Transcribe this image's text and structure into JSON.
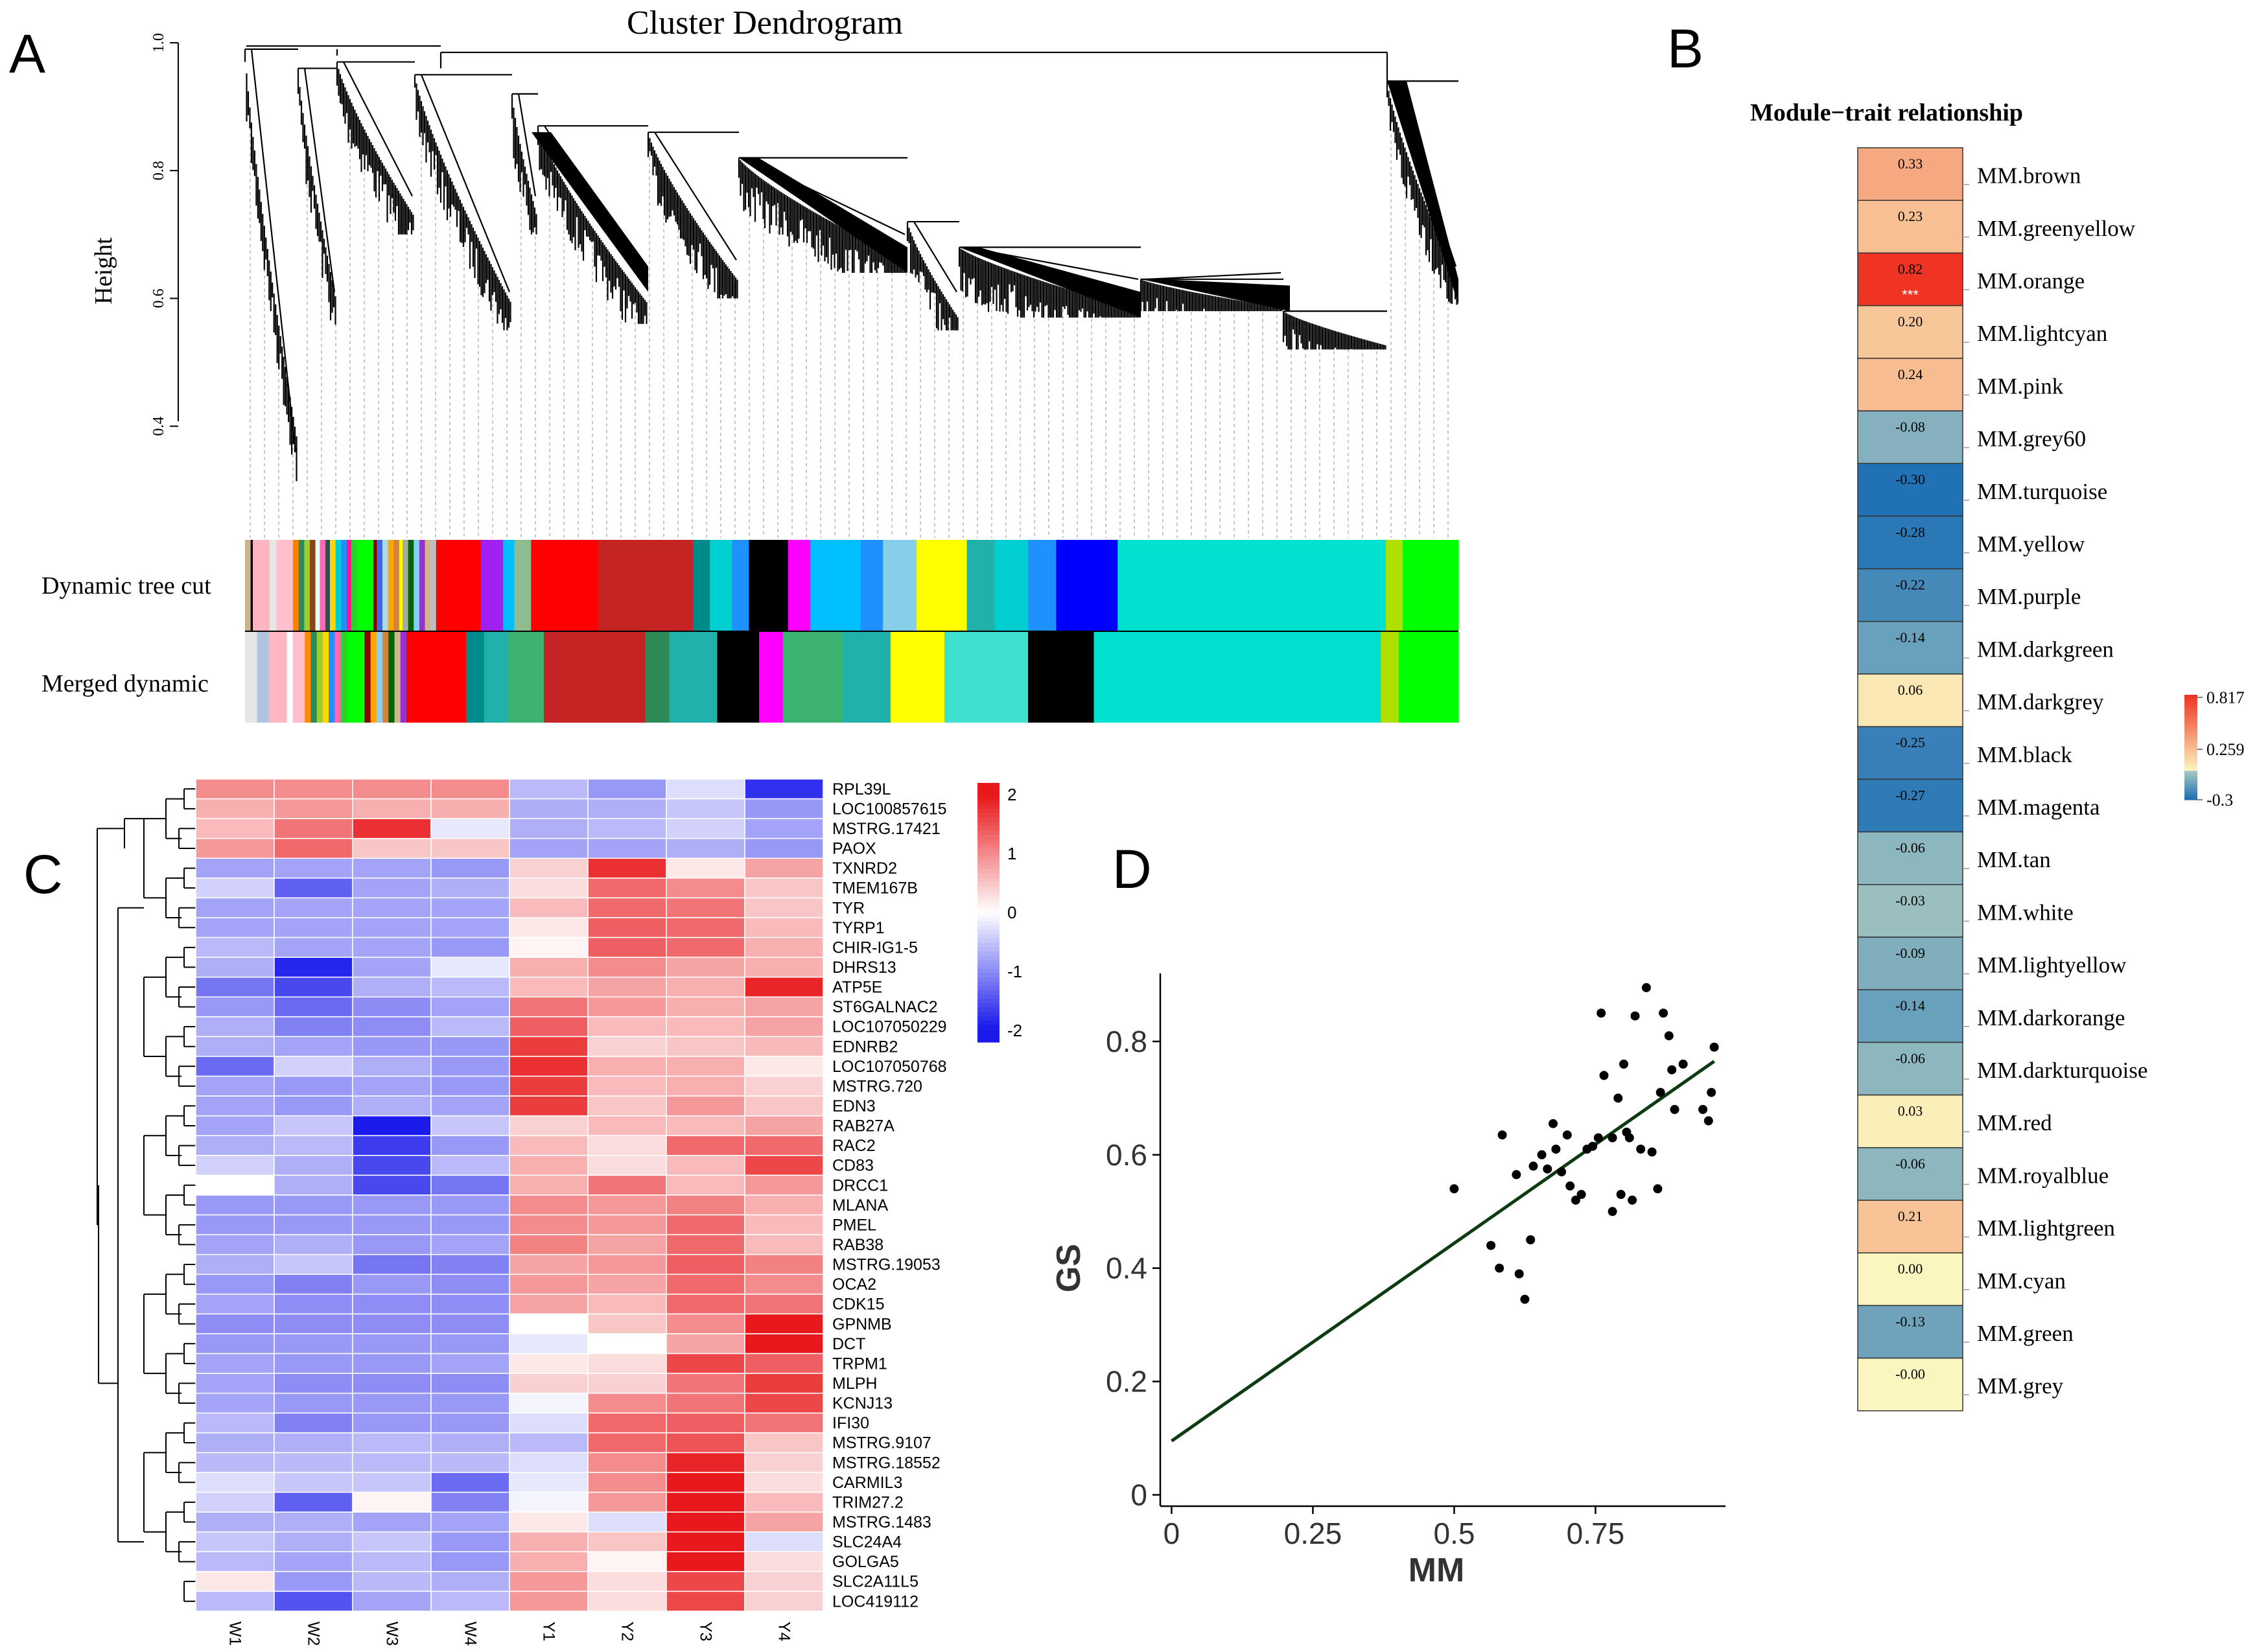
{
  "panels": {
    "a": {
      "letter": "A",
      "title": "Cluster Dendrogram",
      "ylabel": "Height",
      "yticks": [
        "1.0",
        "0.8",
        "0.6",
        "0.4"
      ],
      "row_labels": [
        "Dynamic tree cut",
        "Merged dynamic"
      ]
    },
    "b": {
      "letter": "B",
      "title": "Module−trait relationship",
      "scale_labels": [
        "0.817",
        "0.259",
        "-0.3"
      ]
    },
    "c": {
      "letter": "C",
      "legend_ticks": [
        "2",
        "1",
        "0",
        "-1",
        "-2"
      ]
    },
    "d": {
      "letter": "D"
    }
  },
  "colors": {
    "dendrogram": "#000000",
    "heat_high": "#e8191c",
    "heat_mid": "#ffffff",
    "heat_low": "#1a1aeb",
    "trait_high": "#ee3524",
    "trait_mid": "#fbf6bf",
    "trait_low": "#2172b5",
    "fit_line": "#0d3b11"
  },
  "chart_data": [
    {
      "id": "module-colors",
      "type": "table",
      "title": "Cluster Dendrogram",
      "rows": [
        "Dynamic tree cut",
        "Merged dynamic"
      ],
      "dynamic": [
        [
          "#cdb38b",
          1
        ],
        [
          "#000000",
          0.4
        ],
        [
          "#ffb6c1",
          3
        ],
        [
          "#e6e6e6",
          1.2
        ],
        [
          "#ffc0cb",
          3
        ],
        [
          "#ff7f00",
          1
        ],
        [
          "#2e8b57",
          1
        ],
        [
          "#9acd32",
          1
        ],
        [
          "#8b4513",
          1
        ],
        [
          "#e0ffff",
          0.8
        ],
        [
          "#ff69b4",
          1
        ],
        [
          "#2f4f4f",
          0.8
        ],
        [
          "#ffd700",
          1
        ],
        [
          "#00ced1",
          1
        ],
        [
          "#1e90ff",
          1
        ],
        [
          "#ff1493",
          0.8
        ],
        [
          "#32cd32",
          1
        ],
        [
          "#00ff00",
          3
        ],
        [
          "#8b0000",
          0.6
        ],
        [
          "#4169e1",
          1
        ],
        [
          "#add8e6",
          1
        ],
        [
          "#ffa500",
          1
        ],
        [
          "#cd853f",
          1
        ],
        [
          "#ffff00",
          0.6
        ],
        [
          "#a9a9a9",
          1
        ],
        [
          "#006400",
          1
        ],
        [
          "#87cefa",
          1
        ],
        [
          "#9932cc",
          1
        ],
        [
          "#d2b48c",
          1
        ],
        [
          "#bebebe",
          1
        ],
        [
          "#ff0000",
          8
        ],
        [
          "#a020f0",
          4
        ],
        [
          "#00bfff",
          2
        ],
        [
          "#8fbc8f",
          3
        ],
        [
          "#ff0000",
          12
        ],
        [
          "#c52424",
          17
        ],
        [
          "#008b8b",
          3
        ],
        [
          "#00ced1",
          4
        ],
        [
          "#1e90ff",
          3
        ],
        [
          "#000000",
          7
        ],
        [
          "#ff00ff",
          4
        ],
        [
          "#00bfff",
          9
        ],
        [
          "#1e90ff",
          4
        ],
        [
          "#87ceeb",
          6
        ],
        [
          "#ffff00",
          9
        ],
        [
          "#20b2aa",
          5
        ],
        [
          "#00ced1",
          6
        ],
        [
          "#1e90ff",
          5
        ],
        [
          "#0000ff",
          11
        ],
        [
          "#00e0cf",
          48
        ],
        [
          "#b0e000",
          3
        ],
        [
          "#00ff00",
          10
        ]
      ],
      "merged": [
        [
          "#e6e6e6",
          2
        ],
        [
          "#b0c4de",
          2
        ],
        [
          "#ffb6c1",
          3
        ],
        [
          "#ffffff",
          1
        ],
        [
          "#ffc0cb",
          2
        ],
        [
          "#ff8c00",
          1
        ],
        [
          "#2e8b57",
          1
        ],
        [
          "#9acd32",
          1
        ],
        [
          "#ffd700",
          1
        ],
        [
          "#1e90ff",
          1
        ],
        [
          "#ff69b4",
          1
        ],
        [
          "#32cd32",
          1
        ],
        [
          "#00ff00",
          3
        ],
        [
          "#8b0000",
          1
        ],
        [
          "#ffa500",
          1
        ],
        [
          "#87cefa",
          1
        ],
        [
          "#cd853f",
          1
        ],
        [
          "#006400",
          1
        ],
        [
          "#d2b48c",
          1
        ],
        [
          "#9932cc",
          1
        ],
        [
          "#ff0000",
          10
        ],
        [
          "#008b8b",
          3
        ],
        [
          "#20b2aa",
          4
        ],
        [
          "#3cb371",
          6
        ],
        [
          "#c52424",
          17
        ],
        [
          "#2e8b57",
          4
        ],
        [
          "#20b2aa",
          8
        ],
        [
          "#000000",
          7
        ],
        [
          "#ff00ff",
          4
        ],
        [
          "#3cb371",
          10
        ],
        [
          "#20b2aa",
          8
        ],
        [
          "#ffff00",
          9
        ],
        [
          "#40e0d0",
          14
        ],
        [
          "#000000",
          11
        ],
        [
          "#00e0cf",
          48
        ],
        [
          "#b0e000",
          3
        ],
        [
          "#00ff00",
          10
        ]
      ]
    },
    {
      "id": "module-trait",
      "type": "heatmap",
      "title": "Module−trait relationship",
      "rows": [
        "MM.brown",
        "MM.greenyellow",
        "MM.orange",
        "MM.lightcyan",
        "MM.pink",
        "MM.grey60",
        "MM.turquoise",
        "MM.yellow",
        "MM.purple",
        "MM.darkgreen",
        "MM.darkgrey",
        "MM.black",
        "MM.magenta",
        "MM.tan",
        "MM.white",
        "MM.lightyellow",
        "MM.darkorange",
        "MM.darkturquoise",
        "MM.red",
        "MM.royalblue",
        "MM.lightgreen",
        "MM.cyan",
        "MM.green",
        "MM.grey"
      ],
      "values": [
        0.33,
        0.23,
        0.82,
        0.2,
        0.24,
        -0.08,
        -0.3,
        -0.28,
        -0.22,
        -0.14,
        0.06,
        -0.25,
        -0.27,
        -0.06,
        -0.03,
        -0.09,
        -0.14,
        -0.06,
        0.03,
        -0.06,
        0.21,
        0.0,
        -0.13,
        -0.0
      ],
      "labels": [
        "0.33",
        "0.23",
        "0.82",
        "0.20",
        "0.24",
        "-0.08",
        "-0.30",
        "-0.28",
        "-0.22",
        "-0.14",
        "0.06",
        "-0.25",
        "-0.27",
        "-0.06",
        "-0.03",
        "-0.09",
        "-0.14",
        "-0.06",
        "0.03",
        "-0.06",
        "0.21",
        "0.00",
        "-0.13",
        "-0.00"
      ],
      "stars": [
        "",
        "",
        "***",
        "",
        "",
        "",
        "",
        "",
        "",
        "",
        "",
        "",
        "",
        "",
        "",
        "",
        "",
        "",
        "",
        "",
        "",
        "",
        "",
        ""
      ],
      "range": [
        -0.3,
        0.817
      ]
    },
    {
      "id": "expression-heatmap",
      "type": "heatmap",
      "columns": [
        "W1",
        "W2",
        "W3",
        "W4",
        "Y1",
        "Y2",
        "Y3",
        "Y4"
      ],
      "rows": [
        "RPL39L",
        "LOC100857615",
        "MSTRG.17421",
        "PAOX",
        "TXNRD2",
        "TMEM167B",
        "TYR",
        "TYRP1",
        "CHIR-IG1-5",
        "DHRS13",
        "ATP5E",
        "ST6GALNAC2",
        "LOC107050229",
        "EDNRB2",
        "LOC107050768",
        "MSTRG.720",
        "EDN3",
        "RAB27A",
        "RAC2",
        "CD83",
        "DRCC1",
        "MLANA",
        "PMEL",
        "RAB38",
        "MSTRG.19053",
        "OCA2",
        "CDK15",
        "GPNMB",
        "DCT",
        "TRPM1",
        "MLPH",
        "KCNJ13",
        "IFI30",
        "MSTRG.9107",
        "MSTRG.18552",
        "CARMIL3",
        "TRIM27.2",
        "MSTRG.1483",
        "SLC24A4",
        "GOLGA5",
        "SLC2A11L5",
        "LOC419112"
      ],
      "values": [
        [
          1.0,
          1.0,
          1.0,
          1.0,
          -0.6,
          -0.9,
          -0.3,
          -1.8
        ],
        [
          0.7,
          0.9,
          0.7,
          0.7,
          -0.7,
          -0.7,
          -0.5,
          -0.9
        ],
        [
          0.6,
          1.2,
          1.8,
          -0.2,
          -0.7,
          -0.6,
          -0.4,
          -0.8
        ],
        [
          0.9,
          1.3,
          0.5,
          0.5,
          -0.8,
          -0.8,
          -0.7,
          -0.9
        ],
        [
          -0.8,
          -0.8,
          -0.8,
          -0.9,
          0.4,
          1.8,
          0.2,
          0.8
        ],
        [
          -0.4,
          -1.4,
          -0.8,
          -0.7,
          0.3,
          1.3,
          1.0,
          0.5
        ],
        [
          -0.8,
          -0.8,
          -0.8,
          -0.8,
          0.6,
          1.3,
          1.2,
          0.5
        ],
        [
          -0.8,
          -0.8,
          -0.8,
          -0.8,
          0.2,
          1.4,
          1.3,
          0.6
        ],
        [
          -0.6,
          -0.8,
          -0.8,
          -0.9,
          0.1,
          1.4,
          1.3,
          0.7
        ],
        [
          -0.7,
          -1.9,
          -0.8,
          -0.2,
          0.7,
          1.0,
          0.8,
          0.7
        ],
        [
          -1.2,
          -1.6,
          -0.7,
          -0.6,
          0.6,
          0.8,
          0.7,
          1.9
        ],
        [
          -0.9,
          -1.3,
          -1.0,
          -0.8,
          1.2,
          0.9,
          0.7,
          0.8
        ],
        [
          -0.7,
          -1.1,
          -1.0,
          -0.6,
          1.4,
          0.6,
          0.6,
          0.8
        ],
        [
          -0.7,
          -0.8,
          -0.9,
          -0.9,
          1.7,
          0.4,
          0.5,
          0.6
        ],
        [
          -1.3,
          -0.4,
          -0.7,
          -0.9,
          1.8,
          0.7,
          0.7,
          0.2
        ],
        [
          -0.8,
          -0.9,
          -0.8,
          -0.9,
          1.7,
          0.6,
          0.7,
          0.4
        ],
        [
          -0.8,
          -0.9,
          -0.7,
          -0.8,
          1.7,
          0.5,
          0.9,
          0.5
        ],
        [
          -0.8,
          -0.5,
          -2.0,
          -0.5,
          0.4,
          0.6,
          0.6,
          0.8
        ],
        [
          -0.7,
          -0.6,
          -1.7,
          -0.9,
          0.6,
          0.3,
          1.3,
          1.3
        ],
        [
          -0.4,
          -0.7,
          -1.6,
          -0.6,
          0.7,
          0.3,
          0.6,
          1.6
        ],
        [
          0.0,
          -0.7,
          -1.6,
          -1.2,
          0.7,
          1.2,
          0.6,
          0.9
        ],
        [
          -0.9,
          -0.9,
          -0.9,
          -0.9,
          1.0,
          0.9,
          1.1,
          0.7
        ],
        [
          -0.9,
          -0.9,
          -0.9,
          -0.9,
          1.0,
          0.9,
          1.3,
          0.6
        ],
        [
          -0.8,
          -0.7,
          -0.9,
          -0.8,
          1.1,
          0.8,
          1.3,
          0.6
        ],
        [
          -0.7,
          -0.5,
          -1.2,
          -1.1,
          0.8,
          0.9,
          1.4,
          1.1
        ],
        [
          -0.9,
          -1.1,
          -0.9,
          -1.0,
          0.9,
          0.8,
          1.3,
          1.0
        ],
        [
          -0.8,
          -1.0,
          -1.0,
          -1.0,
          0.8,
          0.6,
          1.3,
          1.2
        ],
        [
          -1.0,
          -1.0,
          -1.0,
          -1.0,
          0.0,
          0.5,
          1.0,
          2.2
        ],
        [
          -0.9,
          -0.9,
          -0.9,
          -0.9,
          -0.2,
          0.0,
          0.8,
          2.2
        ],
        [
          -0.8,
          -0.9,
          -0.9,
          -0.8,
          0.2,
          0.3,
          1.6,
          1.4
        ],
        [
          -0.8,
          -1.0,
          -1.0,
          -1.0,
          0.4,
          0.4,
          1.2,
          1.7
        ],
        [
          -0.8,
          -0.9,
          -0.9,
          -0.9,
          -0.1,
          1.0,
          1.2,
          1.6
        ],
        [
          -0.6,
          -1.1,
          -0.9,
          -0.9,
          -0.3,
          1.3,
          1.4,
          1.2
        ],
        [
          -0.7,
          -0.7,
          -0.6,
          -0.7,
          -0.6,
          1.3,
          1.5,
          0.5
        ],
        [
          -0.6,
          -0.6,
          -0.6,
          -0.6,
          -0.3,
          1.0,
          1.9,
          0.4
        ],
        [
          -0.3,
          -0.5,
          -0.5,
          -1.3,
          -0.2,
          1.0,
          2.0,
          0.3
        ],
        [
          -0.4,
          -1.4,
          0.1,
          -1.1,
          -0.1,
          0.9,
          2.0,
          0.6
        ],
        [
          -0.7,
          -0.7,
          -0.8,
          -0.8,
          0.2,
          -0.3,
          2.1,
          0.8
        ],
        [
          -0.5,
          -0.7,
          -0.5,
          -0.9,
          0.7,
          0.5,
          2.0,
          -0.3
        ],
        [
          -0.6,
          -0.8,
          -0.6,
          -0.9,
          0.7,
          0.1,
          2.0,
          0.3
        ],
        [
          0.2,
          -0.9,
          -0.6,
          -0.7,
          0.9,
          0.3,
          1.6,
          0.4
        ],
        [
          -0.6,
          -1.5,
          -0.8,
          -0.6,
          0.9,
          0.3,
          1.6,
          0.4
        ]
      ],
      "range": [
        -2,
        2.2
      ]
    },
    {
      "id": "gs-vs-mm",
      "type": "scatter",
      "xlabel": "MM",
      "ylabel": "GS",
      "xlim": [
        -0.02,
        0.98
      ],
      "ylim": [
        -0.02,
        0.92
      ],
      "xticks": [
        0,
        0.25,
        0.5,
        0.75
      ],
      "xtick_labels": [
        "0",
        "0.25",
        "0.5",
        "0.75"
      ],
      "yticks": [
        0,
        0.2,
        0.4,
        0.6,
        0.8
      ],
      "ytick_labels": [
        "0",
        "0.2",
        "0.4",
        "0.6",
        "0.8"
      ],
      "fit": {
        "x": [
          0,
          0.96
        ],
        "y": [
          0.095,
          0.765
        ]
      },
      "points": [
        [
          0.5,
          0.54
        ],
        [
          0.565,
          0.44
        ],
        [
          0.58,
          0.4
        ],
        [
          0.585,
          0.635
        ],
        [
          0.61,
          0.565
        ],
        [
          0.615,
          0.39
        ],
        [
          0.625,
          0.345
        ],
        [
          0.635,
          0.45
        ],
        [
          0.64,
          0.58
        ],
        [
          0.655,
          0.6
        ],
        [
          0.665,
          0.575
        ],
        [
          0.675,
          0.655
        ],
        [
          0.68,
          0.61
        ],
        [
          0.69,
          0.57
        ],
        [
          0.7,
          0.635
        ],
        [
          0.705,
          0.545
        ],
        [
          0.715,
          0.52
        ],
        [
          0.725,
          0.53
        ],
        [
          0.735,
          0.61
        ],
        [
          0.745,
          0.615
        ],
        [
          0.755,
          0.63
        ],
        [
          0.76,
          0.85
        ],
        [
          0.765,
          0.74
        ],
        [
          0.78,
          0.5
        ],
        [
          0.78,
          0.63
        ],
        [
          0.79,
          0.7
        ],
        [
          0.795,
          0.53
        ],
        [
          0.8,
          0.76
        ],
        [
          0.805,
          0.64
        ],
        [
          0.81,
          0.63
        ],
        [
          0.815,
          0.52
        ],
        [
          0.82,
          0.845
        ],
        [
          0.83,
          0.61
        ],
        [
          0.84,
          0.895
        ],
        [
          0.85,
          0.605
        ],
        [
          0.86,
          0.54
        ],
        [
          0.865,
          0.71
        ],
        [
          0.87,
          0.85
        ],
        [
          0.88,
          0.81
        ],
        [
          0.885,
          0.75
        ],
        [
          0.89,
          0.68
        ],
        [
          0.905,
          0.76
        ],
        [
          0.94,
          0.68
        ],
        [
          0.95,
          0.66
        ],
        [
          0.955,
          0.71
        ],
        [
          0.96,
          0.79
        ]
      ]
    }
  ]
}
